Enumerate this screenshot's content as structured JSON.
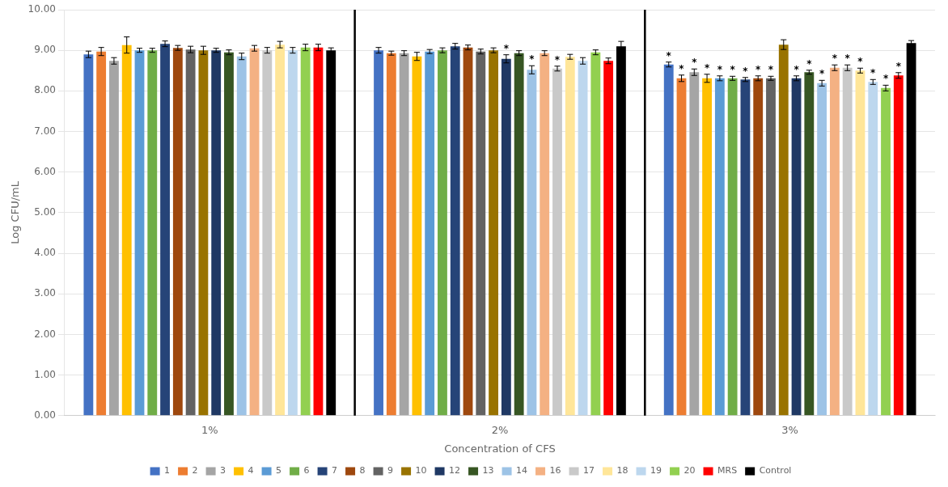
{
  "chart_data": {
    "type": "bar",
    "xlabel": "Concentration of CFS",
    "ylabel": "Log CFU/mL",
    "categories": [
      "1%",
      "2%",
      "3%"
    ],
    "series": [
      {
        "name": "1",
        "color": "#4472C4",
        "values": [
          8.9,
          9.0,
          8.65
        ],
        "errors": [
          0.08,
          0.07,
          0.06
        ],
        "annotations": [
          null,
          null,
          "*"
        ]
      },
      {
        "name": "2",
        "color": "#ED7D31",
        "values": [
          8.97,
          8.93,
          8.31
        ],
        "errors": [
          0.1,
          0.05,
          0.08
        ],
        "annotations": [
          null,
          null,
          "*"
        ]
      },
      {
        "name": "3",
        "color": "#A5A5A5",
        "values": [
          8.74,
          8.93,
          8.46
        ],
        "errors": [
          0.08,
          0.06,
          0.08
        ],
        "annotations": [
          null,
          null,
          "*"
        ]
      },
      {
        "name": "4",
        "color": "#FFC000",
        "values": [
          9.13,
          8.85,
          8.31
        ],
        "errors": [
          0.2,
          0.1,
          0.1
        ],
        "annotations": [
          null,
          null,
          "*"
        ]
      },
      {
        "name": "5",
        "color": "#5B9BD5",
        "values": [
          9.0,
          8.97,
          8.31
        ],
        "errors": [
          0.05,
          0.05,
          0.06
        ],
        "annotations": [
          null,
          null,
          "*"
        ]
      },
      {
        "name": "6",
        "color": "#70AD47",
        "values": [
          9.0,
          9.0,
          8.31
        ],
        "errors": [
          0.05,
          0.06,
          0.05
        ],
        "annotations": [
          null,
          null,
          "*"
        ]
      },
      {
        "name": "7",
        "color": "#264478",
        "values": [
          9.16,
          9.1,
          8.28
        ],
        "errors": [
          0.07,
          0.07,
          0.05
        ],
        "annotations": [
          null,
          null,
          "*"
        ]
      },
      {
        "name": "8",
        "color": "#9E480E",
        "values": [
          9.06,
          9.07,
          8.31
        ],
        "errors": [
          0.06,
          0.06,
          0.06
        ],
        "annotations": [
          null,
          null,
          "*"
        ]
      },
      {
        "name": "9",
        "color": "#636363",
        "values": [
          9.02,
          8.97,
          8.31
        ],
        "errors": [
          0.08,
          0.06,
          0.05
        ],
        "annotations": [
          null,
          null,
          "*"
        ]
      },
      {
        "name": "10",
        "color": "#997300",
        "values": [
          9.0,
          9.0,
          9.14
        ],
        "errors": [
          0.1,
          0.06,
          0.12
        ],
        "annotations": [
          null,
          null,
          null
        ]
      },
      {
        "name": "12",
        "color": "#1F3864",
        "values": [
          9.0,
          8.79,
          8.31
        ],
        "errors": [
          0.05,
          0.1,
          0.06
        ],
        "annotations": [
          null,
          "*",
          "*"
        ]
      },
      {
        "name": "13",
        "color": "#375623",
        "values": [
          8.95,
          8.93,
          8.46
        ],
        "errors": [
          0.06,
          0.06,
          0.05
        ],
        "annotations": [
          null,
          null,
          "*"
        ]
      },
      {
        "name": "14",
        "color": "#9DC3E6",
        "values": [
          8.85,
          8.52,
          8.19
        ],
        "errors": [
          0.08,
          0.1,
          0.07
        ],
        "annotations": [
          null,
          "*",
          "*"
        ]
      },
      {
        "name": "16",
        "color": "#F4B183",
        "values": [
          9.05,
          8.93,
          8.57
        ],
        "errors": [
          0.07,
          0.06,
          0.07
        ],
        "annotations": [
          null,
          null,
          "*"
        ]
      },
      {
        "name": "17",
        "color": "#C9C9C9",
        "values": [
          9.0,
          8.55,
          8.57
        ],
        "errors": [
          0.07,
          0.06,
          0.07
        ],
        "annotations": [
          null,
          "*",
          "*"
        ]
      },
      {
        "name": "18",
        "color": "#FFE699",
        "values": [
          9.14,
          8.84,
          8.5
        ],
        "errors": [
          0.08,
          0.06,
          0.06
        ],
        "annotations": [
          null,
          null,
          "*"
        ]
      },
      {
        "name": "19",
        "color": "#BDD7EE",
        "values": [
          9.0,
          8.74,
          8.22
        ],
        "errors": [
          0.07,
          0.08,
          0.06
        ],
        "annotations": [
          null,
          null,
          "*"
        ]
      },
      {
        "name": "20",
        "color": "#92D050",
        "values": [
          9.07,
          8.95,
          8.07
        ],
        "errors": [
          0.08,
          0.06,
          0.07
        ],
        "annotations": [
          null,
          null,
          "*"
        ]
      },
      {
        "name": "MRS",
        "color": "#FF0000",
        "values": [
          9.07,
          8.74,
          8.38
        ],
        "errors": [
          0.08,
          0.07,
          0.07
        ],
        "annotations": [
          null,
          null,
          "*"
        ]
      },
      {
        "name": "Control",
        "color": "#000000",
        "values": [
          9.0,
          9.1,
          9.18
        ],
        "errors": [
          0.06,
          0.12,
          0.06
        ],
        "annotations": [
          null,
          null,
          null
        ]
      }
    ],
    "ylim": [
      0,
      10
    ],
    "yticks": [
      {
        "value": 0,
        "label": "0.00"
      },
      {
        "value": 1,
        "label": "1.00"
      },
      {
        "value": 2,
        "label": "2.00"
      },
      {
        "value": 3,
        "label": "3.00"
      },
      {
        "value": 4,
        "label": "4.00"
      },
      {
        "value": 5,
        "label": "5.00"
      },
      {
        "value": 6,
        "label": "6.00"
      },
      {
        "value": 7,
        "label": "7.00"
      },
      {
        "value": 8,
        "label": "8.00"
      },
      {
        "value": 9,
        "label": "9.00"
      },
      {
        "value": 10,
        "label": "10.00"
      }
    ],
    "grid": true,
    "legend": "bottom"
  }
}
